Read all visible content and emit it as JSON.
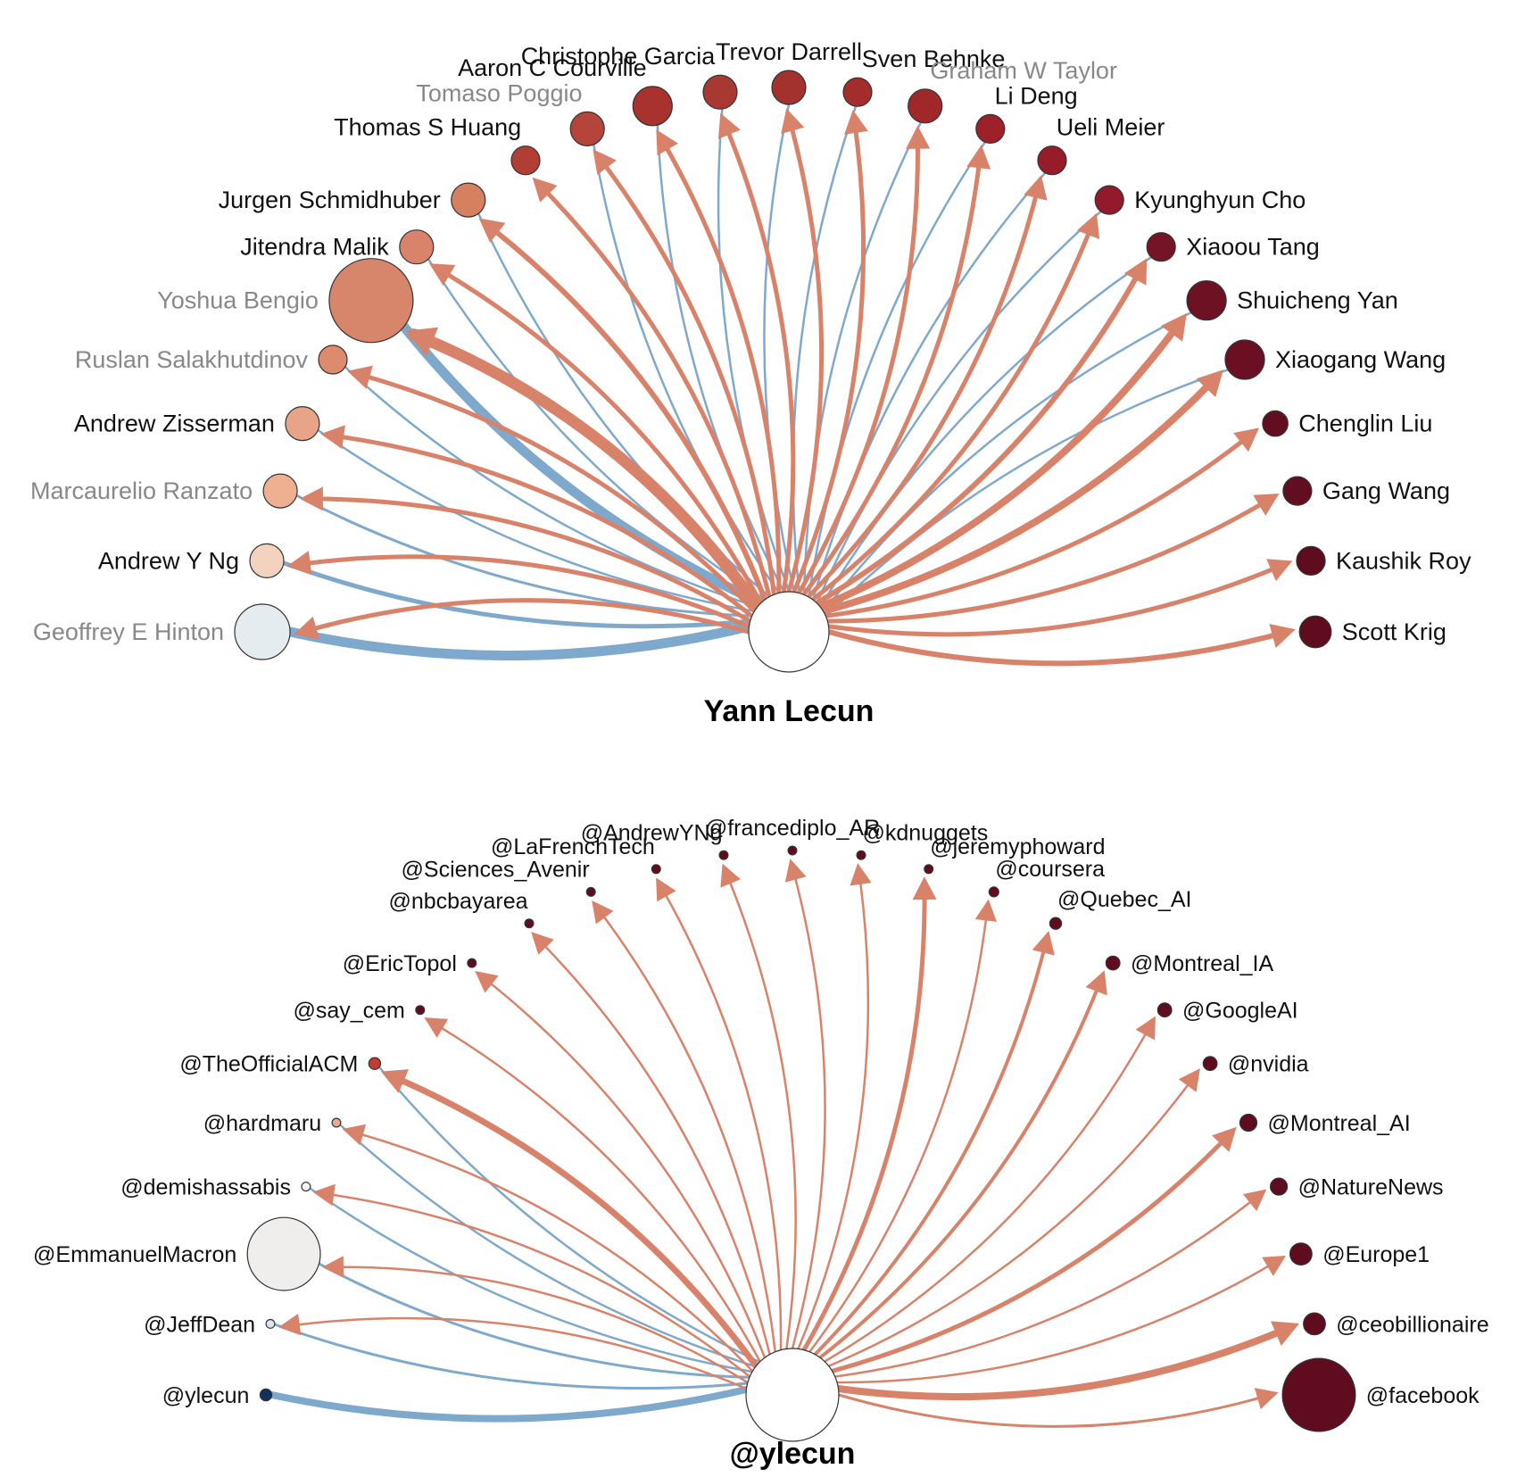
{
  "colors": {
    "outgoing": "#d8826a",
    "incoming": "#7ea9cc",
    "label_default": "#111111",
    "label_muted": "#888888",
    "center_fill": "#ffffff",
    "center_stroke": "#333333"
  },
  "diagrams": [
    {
      "id": "scholar",
      "center_label": "Yann Lecun",
      "nodes": [
        {
          "label": "Geoffrey E Hinton",
          "color": "#e5ecf0",
          "muted": true,
          "size": 4,
          "out_w": 5,
          "in_w": 11
        },
        {
          "label": "Andrew Y Ng",
          "color": "#f3d2bf",
          "muted": false,
          "size": 2,
          "out_w": 5,
          "in_w": 5
        },
        {
          "label": "Marcaurelio Ranzato",
          "color": "#eeb091",
          "muted": true,
          "size": 2,
          "out_w": 5,
          "in_w": 3
        },
        {
          "label": "Andrew Zisserman",
          "color": "#e8a486",
          "muted": false,
          "size": 2,
          "out_w": 5,
          "in_w": 2.5
        },
        {
          "label": "Ruslan Salakhutdinov",
          "color": "#de8a6d",
          "muted": true,
          "size": 1.5,
          "out_w": 5,
          "in_w": 2.5
        },
        {
          "label": "Yoshua Bengio",
          "color": "#d8866b",
          "muted": true,
          "size": 7,
          "out_w": 13,
          "in_w": 11
        },
        {
          "label": "Jitendra Malik",
          "color": "#d9836a",
          "muted": false,
          "size": 2,
          "out_w": 5,
          "in_w": 2.5
        },
        {
          "label": "Jurgen Schmidhuber",
          "color": "#d5805f",
          "muted": false,
          "size": 2,
          "out_w": 6,
          "in_w": 2.5
        },
        {
          "label": "Thomas S Huang",
          "color": "#b13e35",
          "muted": false,
          "size": 1.5,
          "out_w": 5,
          "in_w": 0
        },
        {
          "label": "Tomaso Poggio",
          "color": "#b5443a",
          "muted": true,
          "size": 2,
          "out_w": 5,
          "in_w": 2.5
        },
        {
          "label": "Aaron C Courville",
          "color": "#a8322d",
          "muted": false,
          "size": 2.5,
          "out_w": 5,
          "in_w": 2.5
        },
        {
          "label": "Christophe Garcia",
          "color": "#a83832",
          "muted": false,
          "size": 2,
          "out_w": 5,
          "in_w": 2.5
        },
        {
          "label": "Trevor Darrell",
          "color": "#a3322e",
          "muted": false,
          "size": 2,
          "out_w": 5,
          "in_w": 2.5
        },
        {
          "label": "Sven Behnke",
          "color": "#a32d2d",
          "muted": false,
          "size": 1.5,
          "out_w": 5,
          "in_w": 2.5
        },
        {
          "label": "Graham W Taylor",
          "color": "#a0282b",
          "muted": true,
          "size": 2,
          "out_w": 5,
          "in_w": 2.5
        },
        {
          "label": "Li Deng",
          "color": "#9e2029",
          "muted": false,
          "size": 1.5,
          "out_w": 5,
          "in_w": 2.5
        },
        {
          "label": "Ueli Meier",
          "color": "#971c29",
          "muted": false,
          "size": 1.5,
          "out_w": 5,
          "in_w": 2.5
        },
        {
          "label": "Kyunghyun Cho",
          "color": "#921a2a",
          "muted": false,
          "size": 1.5,
          "out_w": 5,
          "in_w": 2.5
        },
        {
          "label": "Xiaoou Tang",
          "color": "#751426",
          "muted": false,
          "size": 1.5,
          "out_w": 6,
          "in_w": 2.5
        },
        {
          "label": "Shuicheng Yan",
          "color": "#6e1123",
          "muted": false,
          "size": 2.5,
          "out_w": 8,
          "in_w": 2.5
        },
        {
          "label": "Xiaogang Wang",
          "color": "#6a1022",
          "muted": false,
          "size": 2.5,
          "out_w": 8,
          "in_w": 2.5
        },
        {
          "label": "Chenglin Liu",
          "color": "#620d20",
          "muted": false,
          "size": 1.2,
          "out_w": 5,
          "in_w": 0
        },
        {
          "label": "Gang Wang",
          "color": "#620d20",
          "muted": false,
          "size": 1.5,
          "out_w": 5,
          "in_w": 0
        },
        {
          "label": "Kaushik Roy",
          "color": "#5f0c1f",
          "muted": false,
          "size": 1.5,
          "out_w": 5,
          "in_w": 0
        },
        {
          "label": "Scott Krig",
          "color": "#5f0c1f",
          "muted": false,
          "size": 1.8,
          "out_w": 6,
          "in_w": 0
        }
      ]
    },
    {
      "id": "twitter",
      "center_label": "@ylecun",
      "nodes": [
        {
          "label": "@ylecun",
          "color": "#12305e",
          "muted": false,
          "size": 1,
          "out_w": 0,
          "in_w": 8
        },
        {
          "label": "@JeffDean",
          "color": "#d7e6ee",
          "muted": false,
          "size": 0.5,
          "out_w": 2.5,
          "in_w": 3
        },
        {
          "label": "@EmmanuelMacron",
          "color": "#efeeec",
          "muted": false,
          "size": 7,
          "out_w": 2.5,
          "in_w": 3
        },
        {
          "label": "@demishassabis",
          "color": "#f7f5f4",
          "muted": false,
          "size": 0.5,
          "out_w": 2.5,
          "in_w": 2.5
        },
        {
          "label": "@hardmaru",
          "color": "#eba88e",
          "muted": false,
          "size": 0.6,
          "out_w": 2.5,
          "in_w": 2.5
        },
        {
          "label": "@TheOfficialACM",
          "color": "#c03d33",
          "muted": false,
          "size": 1,
          "out_w": 7,
          "in_w": 2.5
        },
        {
          "label": "@say_cem",
          "color": "#5f0c1f",
          "muted": false,
          "size": 0.5,
          "out_w": 2.5,
          "in_w": 0
        },
        {
          "label": "@EricTopol",
          "color": "#5f0c1f",
          "muted": false,
          "size": 0.5,
          "out_w": 2.5,
          "in_w": 0
        },
        {
          "label": "@nbcbayarea",
          "color": "#5f0c1f",
          "muted": false,
          "size": 0.5,
          "out_w": 2.5,
          "in_w": 0
        },
        {
          "label": "@Sciences_Avenir",
          "color": "#5f0c1f",
          "muted": false,
          "size": 0.5,
          "out_w": 2.5,
          "in_w": 0
        },
        {
          "label": "@LaFrenchTech",
          "color": "#5f0c1f",
          "muted": false,
          "size": 0.5,
          "out_w": 2.5,
          "in_w": 0
        },
        {
          "label": "@AndrewYNg",
          "color": "#5f0c1f",
          "muted": false,
          "size": 0.5,
          "out_w": 2.5,
          "in_w": 0
        },
        {
          "label": "@francediplo_AR",
          "color": "#5f0c1f",
          "muted": false,
          "size": 0.5,
          "out_w": 2.5,
          "in_w": 0
        },
        {
          "label": "@kdnuggets",
          "color": "#5f0c1f",
          "muted": false,
          "size": 0.5,
          "out_w": 2.5,
          "in_w": 0
        },
        {
          "label": "@jeremyphoward",
          "color": "#5f0c1f",
          "muted": false,
          "size": 0.5,
          "out_w": 5,
          "in_w": 0
        },
        {
          "label": "@coursera",
          "color": "#5f0c1f",
          "muted": false,
          "size": 0.8,
          "out_w": 2.5,
          "in_w": 0
        },
        {
          "label": "@Quebec_AI",
          "color": "#5f0c1f",
          "muted": false,
          "size": 1,
          "out_w": 4,
          "in_w": 0
        },
        {
          "label": "@Montreal_IA",
          "color": "#5f0c1f",
          "muted": false,
          "size": 1.2,
          "out_w": 4,
          "in_w": 0
        },
        {
          "label": "@GoogleAI",
          "color": "#5f0c1f",
          "muted": false,
          "size": 1.2,
          "out_w": 2.5,
          "in_w": 0
        },
        {
          "label": "@nvidia",
          "color": "#5f0c1f",
          "muted": false,
          "size": 1.2,
          "out_w": 2.5,
          "in_w": 0
        },
        {
          "label": "@Montreal_AI",
          "color": "#5f0c1f",
          "muted": false,
          "size": 1.5,
          "out_w": 5,
          "in_w": 0
        },
        {
          "label": "@NatureNews",
          "color": "#5f0c1f",
          "muted": false,
          "size": 1.5,
          "out_w": 2.5,
          "in_w": 0
        },
        {
          "label": "@Europe1",
          "color": "#5f0c1f",
          "muted": false,
          "size": 2,
          "out_w": 2.5,
          "in_w": 0
        },
        {
          "label": "@ceobillionaire",
          "color": "#5f0c1f",
          "muted": false,
          "size": 2,
          "out_w": 8,
          "in_w": 0
        },
        {
          "label": "@facebook",
          "color": "#5f0c1f",
          "muted": false,
          "size": 7,
          "out_w": 3,
          "in_w": 0
        }
      ]
    }
  ]
}
